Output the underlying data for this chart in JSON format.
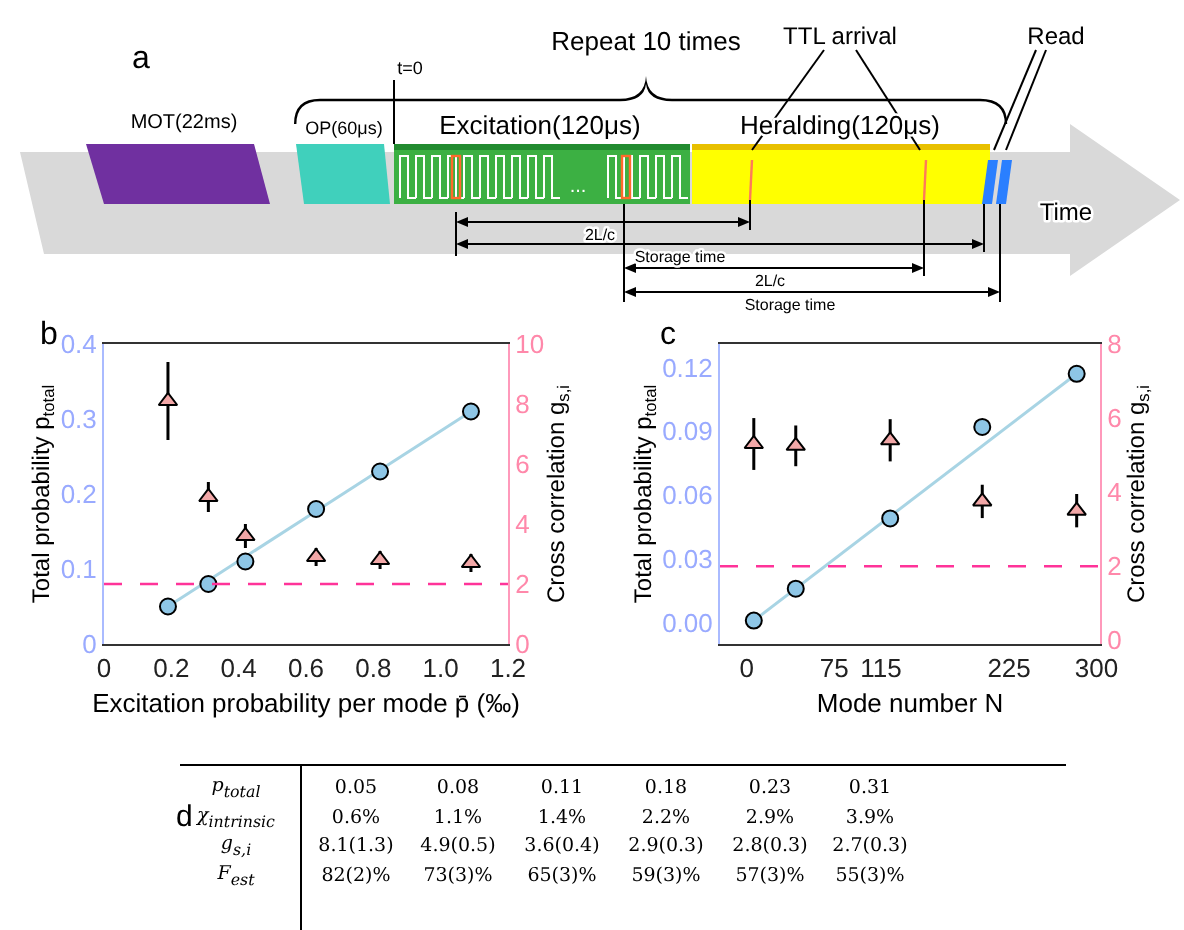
{
  "chart_data": [
    {
      "type": "other",
      "annotations": [
        "a",
        "Repeat 10 times",
        "TTL arrival",
        "Read",
        "t=0",
        "MOT(22ms)",
        "OP(60μs)",
        "Excitation(120μs)",
        "Heralding(120μs)",
        "...",
        "Time",
        "2L/c",
        "Storage time",
        "2L/c",
        "Storage time"
      ]
    },
    {
      "type": "scatter",
      "xlabel": "Excitation probability per mode p̄ (‰)",
      "ylabel": "Total probability p$_{total}$",
      "y2label": "Cross correlation g$_{s,i}$",
      "annotations": [
        "b"
      ],
      "x": [
        0.19,
        0.31,
        0.42,
        0.63,
        0.82,
        1.09
      ],
      "series": [
        {
          "type": "line",
          "color": "#a8d4e4",
          "x": [
            0.19,
            1.09
          ],
          "values": [
            0.05,
            0.31
          ]
        },
        {
          "color": "#8ec6e6",
          "marker": "circle",
          "values": [
            0.05,
            0.08,
            0.11,
            0.18,
            0.23,
            0.31
          ]
        },
        {
          "color": "#f2a7a7",
          "marker": "triangle",
          "axis": "y2",
          "values": [
            8.1,
            4.9,
            3.6,
            2.9,
            2.8,
            2.7
          ],
          "errors": [
            1.3,
            0.5,
            0.4,
            0.3,
            0.3,
            0.3
          ]
        }
      ],
      "xlim": [
        0,
        1.2
      ],
      "xticks": [
        0,
        0.2,
        0.4,
        0.6,
        0.8,
        {
          "value": 1,
          "label": "1.0"
        },
        1.2
      ],
      "ylim": [
        0,
        0.4
      ],
      "yticks": [
        0,
        0.1,
        0.2,
        0.3,
        0.4
      ],
      "y2lim": [
        0,
        10
      ],
      "y2ticks": [
        0,
        2,
        4,
        6,
        8,
        10
      ],
      "ref_lines": [
        {
          "axis": "y2",
          "value": 2,
          "color": "#ff3399",
          "line_style": "dashed"
        }
      ]
    },
    {
      "type": "scatter",
      "xlabel": "Mode number N",
      "ylabel": "Total probability p$_{total}$",
      "y2label": "Cross correlation g$_{s,i}$",
      "annotations": [
        "c"
      ],
      "x": [
        6,
        42,
        123,
        202,
        283
      ],
      "series": [
        {
          "type": "line",
          "color": "#a8d4e4",
          "x": [
            6,
            283
          ],
          "values": [
            0.001,
            0.117
          ]
        },
        {
          "color": "#8ec6e6",
          "marker": "circle",
          "values": [
            0.001,
            0.016,
            0.049,
            0.092,
            0.117
          ]
        },
        {
          "color": "#f2a7a7",
          "marker": "triangle",
          "axis": "y2",
          "values": [
            5.3,
            5.25,
            5.4,
            3.75,
            3.5
          ],
          "errors": [
            0.7,
            0.55,
            0.57,
            0.45,
            0.45
          ]
        }
      ],
      "xlim": [
        -23,
        303
      ],
      "xticks": [
        0,
        75,
        115,
        225,
        300
      ],
      "ylim": [
        -0.01,
        0.131
      ],
      "yticks": [
        {
          "value": 0,
          "label": "0.00"
        },
        0.03,
        0.06,
        0.09,
        0.12
      ],
      "y2lim": [
        -0.1,
        8
      ],
      "y2ticks": [
        0,
        2,
        4,
        6,
        8
      ],
      "ref_lines": [
        {
          "axis": "y2",
          "value": 2,
          "color": "#ff3399",
          "line_style": "dashed"
        }
      ]
    },
    {
      "type": "other",
      "annotations": [
        "d",
        "p$_{total}$",
        "0.05",
        "0.08",
        "0.11",
        "0.18",
        "0.23",
        "0.31",
        "χ$_{intrinsic}$",
        "0.6%",
        "1.1%",
        "1.4%",
        "2.2%",
        "2.9%",
        "3.9%",
        "g$_{s,i}$",
        "8.1(1.3)",
        "4.9(0.5)",
        "3.6(0.4)",
        "2.9(0.3)",
        "2.8(0.3)",
        "2.7(0.3)",
        "F$_{est}$",
        "82(2)%",
        "73(3)%",
        "65(3)%",
        "59(3)%",
        "57(3)%",
        "55(3)%"
      ]
    }
  ]
}
